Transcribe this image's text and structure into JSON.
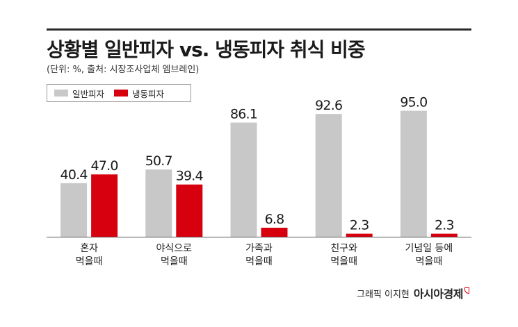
{
  "header": {
    "title": "상황별 일반피자 vs. 냉동피자 취식 비중",
    "subtitle": "(단위: %, 출처: 시장조사업체 엠브레인)"
  },
  "credit": {
    "text": "그래픽 이지현",
    "brand": "아시아경제"
  },
  "colors": {
    "regular": "#c8c8c8",
    "frozen": "#d7000f"
  },
  "chart_data": {
    "type": "bar",
    "title": "상황별 일반피자 vs. 냉동피자 취식 비중",
    "subtitle": "(단위: %, 출처: 시장조사업체 엠브레인)",
    "categories": [
      [
        "혼자",
        "먹을때"
      ],
      [
        "야식으로",
        "먹을때"
      ],
      [
        "가족과",
        "먹을때"
      ],
      [
        "친구와",
        "먹을때"
      ],
      [
        "기념일 등에",
        "먹을때"
      ]
    ],
    "series": [
      {
        "name": "일반피자",
        "values": [
          40.4,
          50.7,
          86.1,
          92.6,
          95.0
        ],
        "labels": [
          "40.4",
          "50.7",
          "86.1",
          "92.6",
          "95.0"
        ]
      },
      {
        "name": "냉동피자",
        "values": [
          47.0,
          39.4,
          6.8,
          2.3,
          2.3
        ],
        "labels": [
          "47.0",
          "39.4",
          "6.8",
          "2.3",
          "2.3"
        ]
      }
    ],
    "ylim": [
      0,
      100
    ],
    "grid": false,
    "legend_position": "top-left"
  }
}
